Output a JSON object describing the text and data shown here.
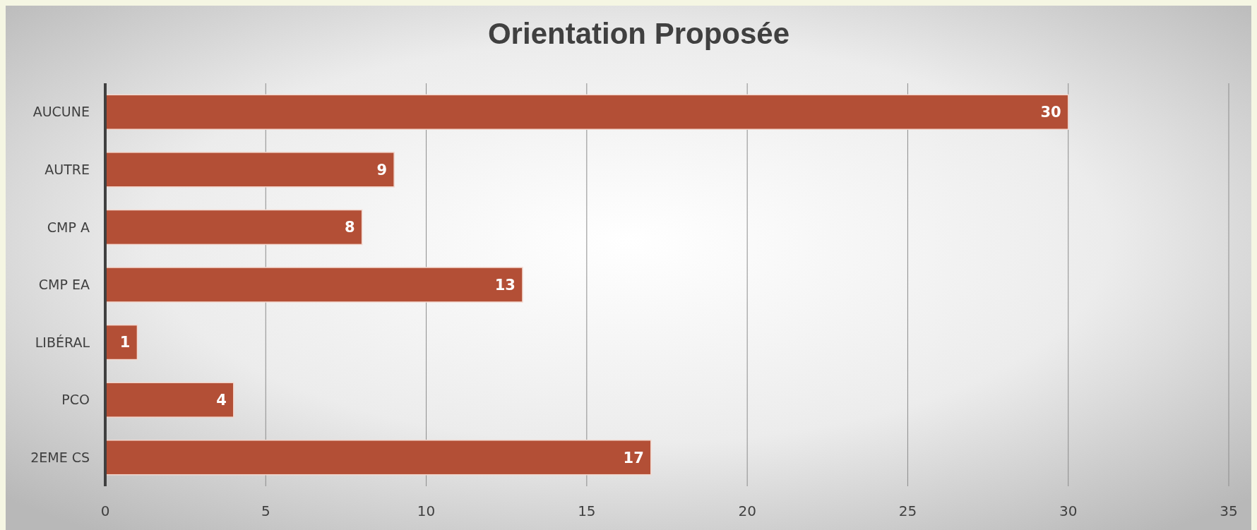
{
  "chart_data": {
    "type": "bar",
    "orientation": "horizontal",
    "title": "Orientation Proposée",
    "categories": [
      "AUCUNE",
      "AUTRE",
      "CMP A",
      "CMP EA",
      "LIBÉRAL",
      "PCO",
      "2EME CS"
    ],
    "values": [
      30,
      9,
      8,
      13,
      1,
      4,
      17
    ],
    "color": "#b34f36",
    "xlim": [
      0,
      35
    ],
    "xticks": [
      0,
      5,
      10,
      15,
      20,
      25,
      30,
      35
    ],
    "grid": "x",
    "data_labels": true
  }
}
